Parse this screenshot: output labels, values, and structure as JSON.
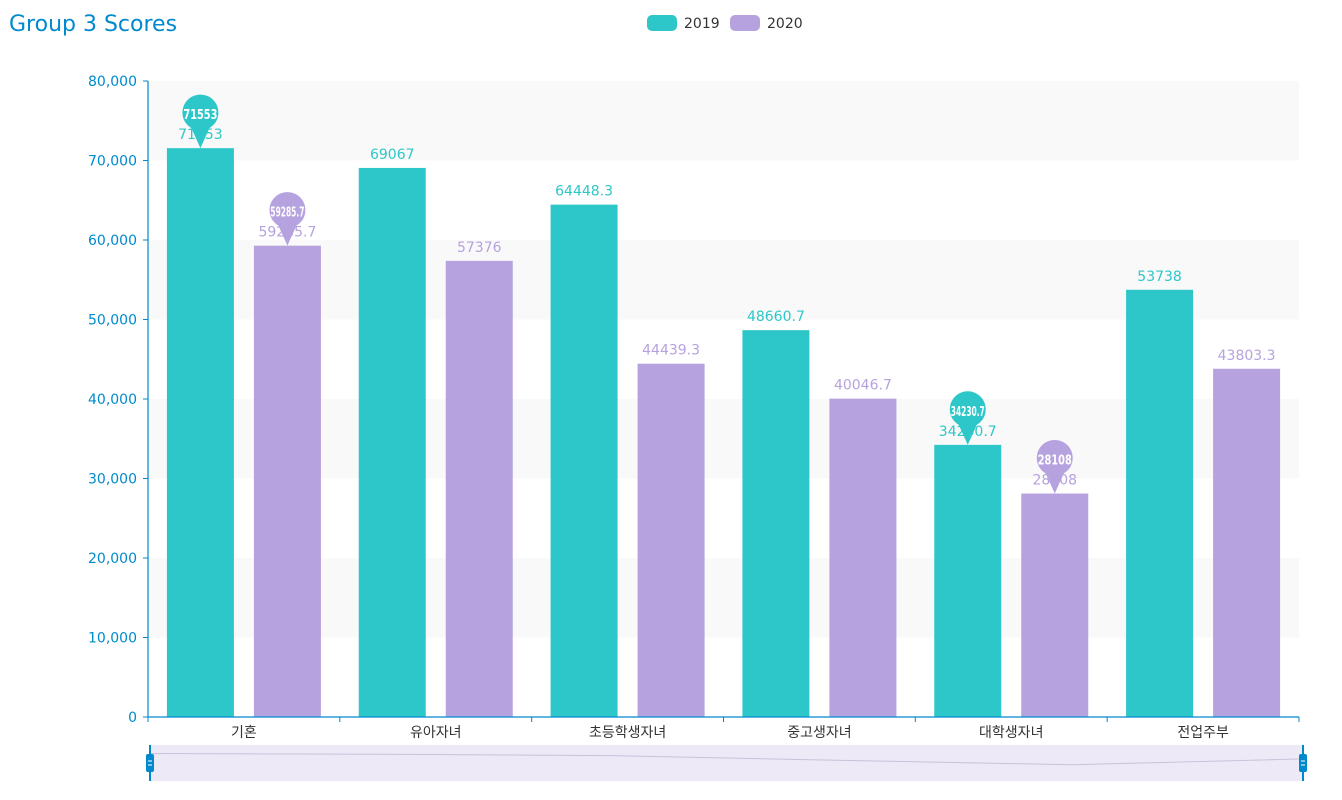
{
  "chart_data": {
    "type": "bar",
    "title": "Group 3 Scores",
    "categories": [
      "기혼",
      "유아자녀",
      "초등학생자녀",
      "중고생자녀",
      "대학생자녀",
      "전업주부"
    ],
    "series": [
      {
        "name": "2019",
        "color": "#2ec7c9",
        "values": [
          71553,
          69067,
          64448.3,
          48660.7,
          34230.7,
          53738
        ],
        "value_labels": [
          "71553",
          "69067",
          "64448.3",
          "48660.7",
          "34230.7",
          "53738"
        ],
        "markers": [
          {
            "category": "기혼",
            "value": 71553,
            "label": "71553"
          },
          {
            "category": "대학생자녀",
            "value": 34230.7,
            "label": "34230.7"
          }
        ]
      },
      {
        "name": "2020",
        "color": "#b6a2de",
        "values": [
          59285.7,
          57376,
          44439.3,
          40046.7,
          28108,
          43803.3
        ],
        "value_labels": [
          "59285.7",
          "57376",
          "44439.3",
          "40046.7",
          "28108",
          "43803.3"
        ],
        "markers": [
          {
            "category": "기혼",
            "value": 59285.7,
            "label": "59285.7"
          },
          {
            "category": "대학생자녀",
            "value": 28108,
            "label": "28108"
          }
        ]
      }
    ],
    "ylim": [
      0,
      80000
    ],
    "yticks": [
      0,
      10000,
      20000,
      30000,
      40000,
      50000,
      60000,
      70000,
      80000
    ],
    "ytick_labels": [
      "0",
      "10,000",
      "20,000",
      "30,000",
      "40,000",
      "50,000",
      "60,000",
      "70,000",
      "80,000"
    ],
    "legend_position": "top-center",
    "grid": "banded",
    "data_zoom": true,
    "axis_color": "#008acd",
    "title_color": "#008acd"
  }
}
